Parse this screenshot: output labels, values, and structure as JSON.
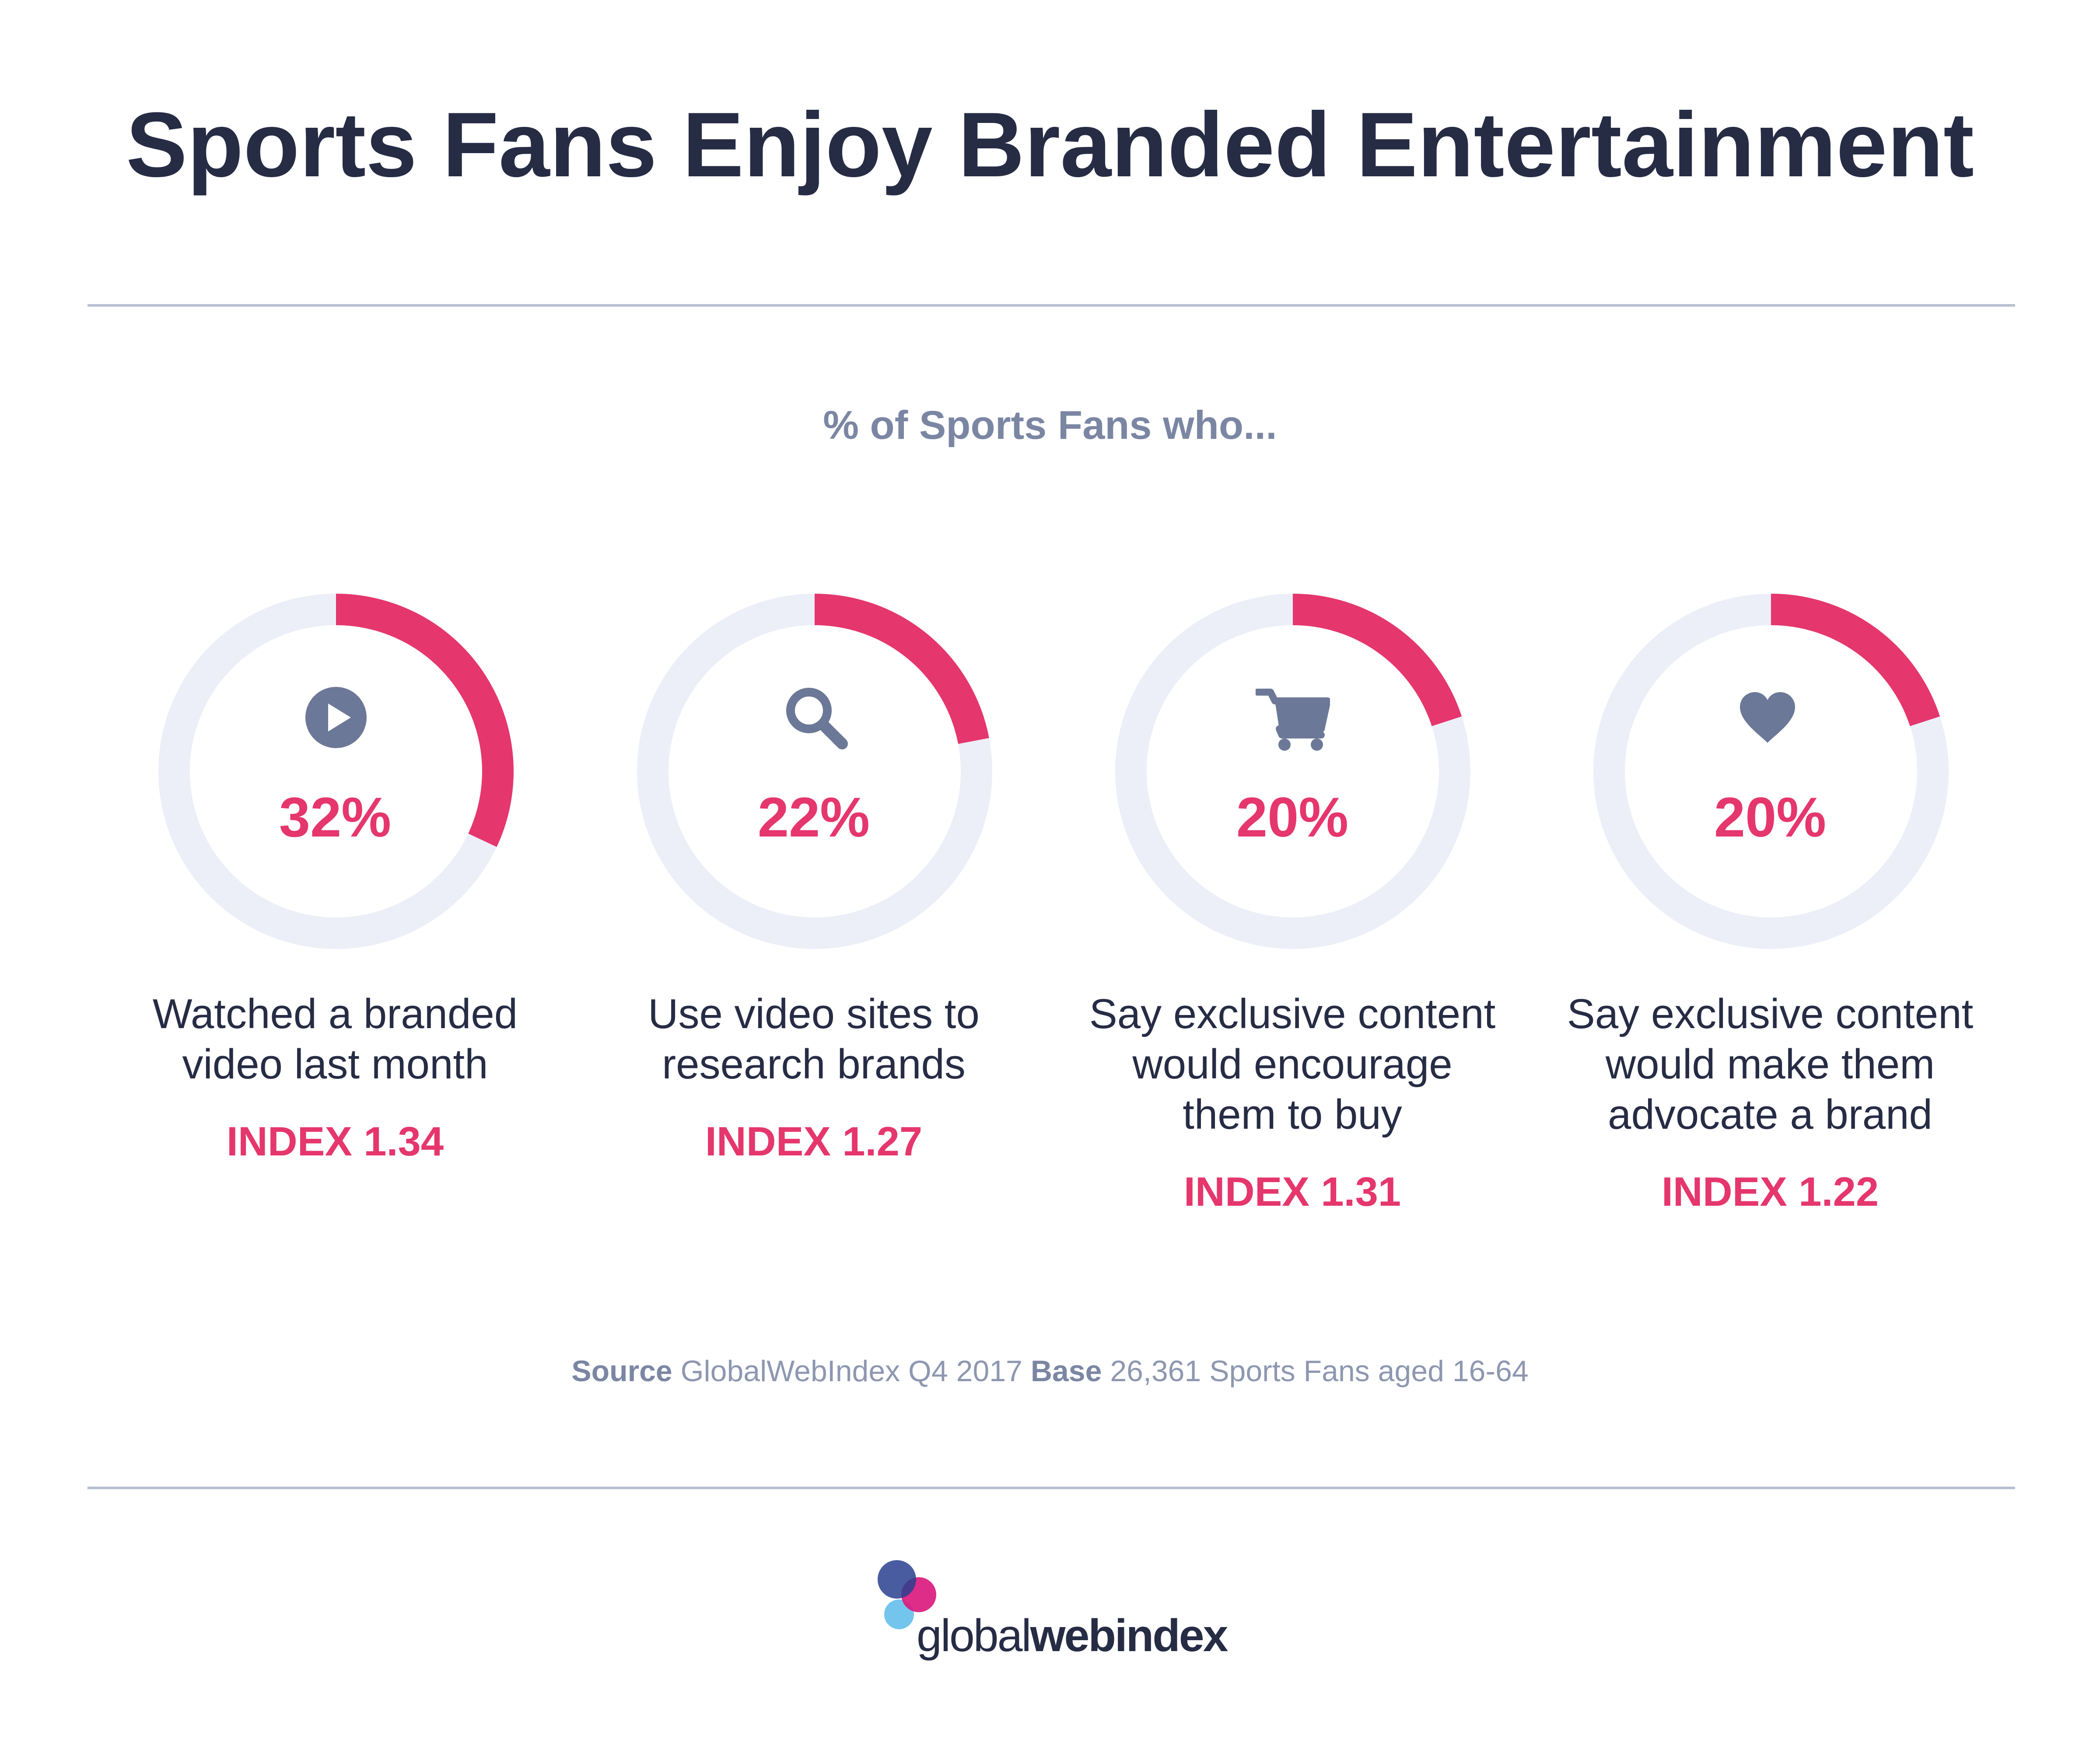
{
  "title": "Sports Fans Enjoy Branded Entertainment",
  "subtitle": "% of Sports Fans who...",
  "colors": {
    "accent": "#e5366d",
    "ring_track": "#eceff8",
    "icon": "#6c7897",
    "text": "#272c45"
  },
  "chart_data": {
    "type": "pie",
    "subtype": "donut-progress",
    "title": "Sports Fans Enjoy Branded Entertainment",
    "subtitle": "% of Sports Fans who...",
    "unit": "%",
    "items": [
      {
        "icon": "play-icon",
        "value": 32,
        "value_label": "32%",
        "label_lines": [
          "Watched a branded",
          "video last month"
        ],
        "index_label": "INDEX 1.34"
      },
      {
        "icon": "search-icon",
        "value": 22,
        "value_label": "22%",
        "label_lines": [
          "Use video sites to",
          "research brands"
        ],
        "index_label": "INDEX 1.27"
      },
      {
        "icon": "cart-icon",
        "value": 20,
        "value_label": "20%",
        "label_lines": [
          "Say exclusive content",
          "would encourage",
          "them to buy"
        ],
        "index_label": "INDEX 1.31"
      },
      {
        "icon": "heart-icon",
        "value": 20,
        "value_label": "20%",
        "label_lines": [
          "Say exclusive content",
          "would make them",
          "advocate a brand"
        ],
        "index_label": "INDEX 1.22"
      }
    ]
  },
  "source": {
    "source_label": "Source",
    "source_text": "GlobalWebIndex Q4 2017",
    "base_label": "Base",
    "base_text": "26,361 Sports Fans aged 16-64"
  },
  "logo": {
    "part1": "global",
    "part2": "webindex"
  }
}
